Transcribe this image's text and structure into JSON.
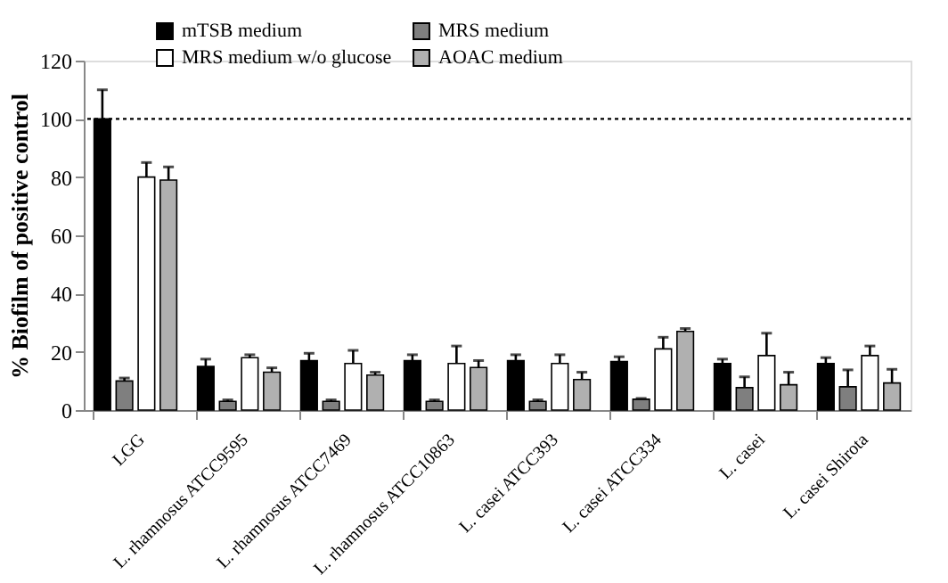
{
  "chart_data": {
    "type": "bar",
    "ylabel": "% Biofilm of positive control",
    "categories": [
      "LGG",
      "L. rhamnosus ATCC9595",
      "L. rhamnosus ATCC7469",
      "L. rhamnosus ATCC10863",
      "L. casei ATCC393",
      "L. casei ATCC334",
      "L. casei",
      "L. casei Shirota"
    ],
    "series": [
      {
        "name": "mTSB medium",
        "color": "#000000",
        "values": [
          100,
          15,
          17,
          17,
          17,
          16.7,
          16,
          16
        ],
        "errors": [
          [
            100,
            110
          ],
          [
            15,
            17.5
          ],
          [
            17,
            19.5
          ],
          [
            17,
            19
          ],
          [
            17,
            19
          ],
          [
            16.7,
            18.3
          ],
          [
            16,
            17.5
          ],
          [
            16,
            18
          ]
        ]
      },
      {
        "name": "MRS medium",
        "color": "#7f7f7f",
        "values": [
          10,
          3,
          3,
          3,
          3,
          3.7,
          7.7,
          8
        ],
        "errors": [
          [
            10,
            11
          ],
          [
            3,
            3.5
          ],
          [
            3,
            3.5
          ],
          [
            3,
            3.5
          ],
          [
            3,
            3.5
          ],
          [
            3.7,
            4
          ],
          [
            7.7,
            11.4
          ],
          [
            8,
            13.8
          ]
        ]
      },
      {
        "name": "MRS medium w/o glucose",
        "color": "#ffffff",
        "values": [
          80,
          18,
          16,
          16,
          16,
          21,
          18.7,
          18.7
        ],
        "errors": [
          [
            80,
            85
          ],
          [
            18,
            19
          ],
          [
            16,
            20.5
          ],
          [
            16,
            22
          ],
          [
            16,
            19
          ],
          [
            21,
            25
          ],
          [
            18.7,
            26.4
          ],
          [
            18.7,
            22
          ]
        ]
      },
      {
        "name": "AOAC medium",
        "color": "#b0b0b0",
        "values": [
          79,
          13,
          12,
          14.6,
          10.5,
          27,
          8.7,
          9.3
        ],
        "errors": [
          [
            79,
            83.5
          ],
          [
            13,
            14.5
          ],
          [
            12,
            13
          ],
          [
            14.6,
            17
          ],
          [
            10.5,
            13
          ],
          [
            27,
            28
          ],
          [
            8.7,
            13
          ],
          [
            9.3,
            14
          ]
        ]
      }
    ],
    "ylim": [
      0,
      120
    ],
    "yticks": [
      0,
      20,
      40,
      60,
      80,
      100,
      120
    ],
    "ref_lines": [
      {
        "axis": "y",
        "value": 100,
        "line_style": "dotted",
        "color": "#000000"
      }
    ],
    "grid": false,
    "legend": "top"
  }
}
